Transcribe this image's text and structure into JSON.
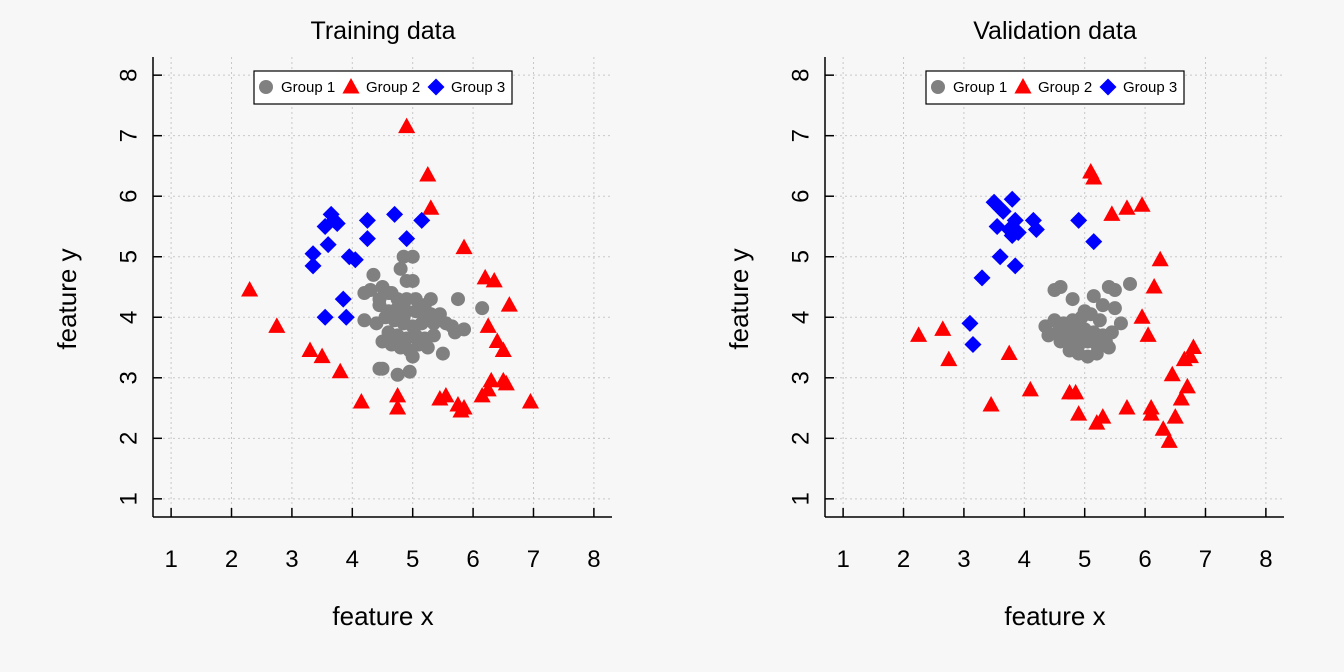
{
  "chart_data": [
    {
      "type": "scatter",
      "title": "Training data",
      "xlabel": "feature x",
      "ylabel": "feature y",
      "xlim": [
        0.7,
        8.3
      ],
      "ylim": [
        0.7,
        8.3
      ],
      "xticks": [
        "1",
        "2",
        "3",
        "4",
        "5",
        "6",
        "7",
        "8"
      ],
      "yticks": [
        "1",
        "2",
        "3",
        "4",
        "5",
        "6",
        "7",
        "8"
      ],
      "grid": true,
      "legend_position": "top-center",
      "series": [
        {
          "name": "Group 1",
          "marker": "circle",
          "color": "#808080",
          "points": [
            [
              4.35,
              4.7
            ],
            [
              4.5,
              4.5
            ],
            [
              4.6,
              4.4
            ],
            [
              4.8,
              4.8
            ],
            [
              4.9,
              4.6
            ],
            [
              5.0,
              4.6
            ],
            [
              4.85,
              5.0
            ],
            [
              5.0,
              5.0
            ],
            [
              4.2,
              4.4
            ],
            [
              4.3,
              4.45
            ],
            [
              4.45,
              4.3
            ],
            [
              4.65,
              4.4
            ],
            [
              4.75,
              4.3
            ],
            [
              4.9,
              4.3
            ],
            [
              5.05,
              4.3
            ],
            [
              5.2,
              4.2
            ],
            [
              5.3,
              4.3
            ],
            [
              4.45,
              4.2
            ],
            [
              4.6,
              4.1
            ],
            [
              4.75,
              4.15
            ],
            [
              4.9,
              4.1
            ],
            [
              5.05,
              4.1
            ],
            [
              5.2,
              4.0
            ],
            [
              5.3,
              4.05
            ],
            [
              4.2,
              3.95
            ],
            [
              4.4,
              3.9
            ],
            [
              4.55,
              4.0
            ],
            [
              4.7,
              3.95
            ],
            [
              4.85,
              3.9
            ],
            [
              5.0,
              3.85
            ],
            [
              5.15,
              3.9
            ],
            [
              5.35,
              3.9
            ],
            [
              5.45,
              4.05
            ],
            [
              5.55,
              3.9
            ],
            [
              5.65,
              3.85
            ],
            [
              5.7,
              3.75
            ],
            [
              5.75,
              4.3
            ],
            [
              4.6,
              3.75
            ],
            [
              4.75,
              3.7
            ],
            [
              4.9,
              3.65
            ],
            [
              5.05,
              3.7
            ],
            [
              5.2,
              3.65
            ],
            [
              5.35,
              3.7
            ],
            [
              4.5,
              3.6
            ],
            [
              4.65,
              3.55
            ],
            [
              4.8,
              3.5
            ],
            [
              4.95,
              3.45
            ],
            [
              5.1,
              3.55
            ],
            [
              5.25,
              3.5
            ],
            [
              5.0,
              3.35
            ],
            [
              5.5,
              3.4
            ],
            [
              4.45,
              3.15
            ],
            [
              4.5,
              3.15
            ],
            [
              4.75,
              3.05
            ],
            [
              4.95,
              3.1
            ],
            [
              6.15,
              4.15
            ],
            [
              5.85,
              3.8
            ],
            [
              4.85,
              4.0
            ]
          ]
        },
        {
          "name": "Group 2",
          "marker": "triangle",
          "color": "#ff0000",
          "points": [
            [
              4.9,
              7.15
            ],
            [
              5.25,
              6.35
            ],
            [
              5.3,
              5.8
            ],
            [
              5.85,
              5.15
            ],
            [
              2.3,
              4.45
            ],
            [
              6.2,
              4.65
            ],
            [
              6.35,
              4.6
            ],
            [
              6.6,
              4.2
            ],
            [
              2.75,
              3.85
            ],
            [
              6.25,
              3.85
            ],
            [
              6.4,
              3.6
            ],
            [
              6.5,
              3.45
            ],
            [
              3.3,
              3.45
            ],
            [
              3.5,
              3.35
            ],
            [
              3.8,
              3.1
            ],
            [
              6.3,
              2.95
            ],
            [
              6.5,
              2.95
            ],
            [
              6.55,
              2.9
            ],
            [
              4.15,
              2.6
            ],
            [
              4.75,
              2.7
            ],
            [
              4.75,
              2.5
            ],
            [
              5.45,
              2.65
            ],
            [
              5.55,
              2.7
            ],
            [
              5.75,
              2.55
            ],
            [
              5.8,
              2.45
            ],
            [
              5.85,
              2.5
            ],
            [
              6.15,
              2.7
            ],
            [
              6.25,
              2.8
            ],
            [
              6.95,
              2.6
            ]
          ]
        },
        {
          "name": "Group 3",
          "marker": "diamond",
          "color": "#0000ff",
          "points": [
            [
              3.65,
              5.7
            ],
            [
              3.7,
              5.6
            ],
            [
              3.75,
              5.55
            ],
            [
              3.55,
              5.5
            ],
            [
              4.25,
              5.6
            ],
            [
              4.7,
              5.7
            ],
            [
              5.15,
              5.6
            ],
            [
              4.25,
              5.3
            ],
            [
              4.9,
              5.3
            ],
            [
              3.6,
              5.2
            ],
            [
              3.35,
              5.05
            ],
            [
              3.95,
              5.0
            ],
            [
              4.05,
              4.95
            ],
            [
              3.35,
              4.85
            ],
            [
              3.85,
              4.3
            ],
            [
              3.55,
              4.0
            ],
            [
              3.9,
              4.0
            ]
          ]
        }
      ]
    },
    {
      "type": "scatter",
      "title": "Validation data",
      "xlabel": "feature x",
      "ylabel": "feature y",
      "xlim": [
        0.7,
        8.3
      ],
      "ylim": [
        0.7,
        8.3
      ],
      "xticks": [
        "1",
        "2",
        "3",
        "4",
        "5",
        "6",
        "7",
        "8"
      ],
      "yticks": [
        "1",
        "2",
        "3",
        "4",
        "5",
        "6",
        "7",
        "8"
      ],
      "grid": true,
      "legend_position": "top-center",
      "series": [
        {
          "name": "Group 1",
          "marker": "circle",
          "color": "#808080",
          "points": [
            [
              4.5,
              4.45
            ],
            [
              4.6,
              4.5
            ],
            [
              4.8,
              4.3
            ],
            [
              5.4,
              4.5
            ],
            [
              5.5,
              4.45
            ],
            [
              5.75,
              4.55
            ],
            [
              5.15,
              4.35
            ],
            [
              5.3,
              4.2
            ],
            [
              5.5,
              4.15
            ],
            [
              4.35,
              3.85
            ],
            [
              4.5,
              3.95
            ],
            [
              4.65,
              3.9
            ],
            [
              4.8,
              3.95
            ],
            [
              4.95,
              4.0
            ],
            [
              5.0,
              4.1
            ],
            [
              5.1,
              4.05
            ],
            [
              5.25,
              3.95
            ],
            [
              5.6,
              3.9
            ],
            [
              4.4,
              3.7
            ],
            [
              4.55,
              3.75
            ],
            [
              4.7,
              3.8
            ],
            [
              4.85,
              3.85
            ],
            [
              5.0,
              3.8
            ],
            [
              5.15,
              3.75
            ],
            [
              5.3,
              3.7
            ],
            [
              5.45,
              3.75
            ],
            [
              4.6,
              3.6
            ],
            [
              4.75,
              3.65
            ],
            [
              4.9,
              3.55
            ],
            [
              5.05,
              3.6
            ],
            [
              5.2,
              3.55
            ],
            [
              5.35,
              3.6
            ],
            [
              4.9,
              3.4
            ],
            [
              5.05,
              3.35
            ],
            [
              5.2,
              3.4
            ],
            [
              5.4,
              3.5
            ],
            [
              4.75,
              3.45
            ],
            [
              5.0,
              3.7
            ],
            [
              4.85,
              3.7
            ]
          ]
        },
        {
          "name": "Group 2",
          "marker": "triangle",
          "color": "#ff0000",
          "points": [
            [
              5.1,
              6.4
            ],
            [
              5.15,
              6.3
            ],
            [
              5.45,
              5.7
            ],
            [
              5.7,
              5.8
            ],
            [
              5.95,
              5.85
            ],
            [
              6.25,
              4.95
            ],
            [
              6.15,
              4.5
            ],
            [
              2.25,
              3.7
            ],
            [
              2.65,
              3.8
            ],
            [
              2.75,
              3.3
            ],
            [
              5.95,
              4.0
            ],
            [
              6.05,
              3.7
            ],
            [
              6.75,
              3.35
            ],
            [
              6.65,
              3.3
            ],
            [
              6.8,
              3.5
            ],
            [
              3.75,
              3.4
            ],
            [
              6.45,
              3.05
            ],
            [
              6.7,
              2.85
            ],
            [
              6.6,
              2.65
            ],
            [
              4.1,
              2.8
            ],
            [
              4.75,
              2.75
            ],
            [
              4.85,
              2.75
            ],
            [
              3.45,
              2.55
            ],
            [
              4.9,
              2.4
            ],
            [
              5.2,
              2.25
            ],
            [
              5.3,
              2.35
            ],
            [
              5.7,
              2.5
            ],
            [
              6.1,
              2.5
            ],
            [
              6.1,
              2.4
            ],
            [
              6.5,
              2.35
            ],
            [
              6.3,
              2.15
            ],
            [
              6.4,
              1.95
            ]
          ]
        },
        {
          "name": "Group 3",
          "marker": "diamond",
          "color": "#0000ff",
          "points": [
            [
              3.5,
              5.9
            ],
            [
              3.8,
              5.95
            ],
            [
              3.6,
              5.8
            ],
            [
              3.65,
              5.75
            ],
            [
              3.85,
              5.6
            ],
            [
              4.15,
              5.6
            ],
            [
              4.9,
              5.6
            ],
            [
              3.55,
              5.5
            ],
            [
              3.75,
              5.45
            ],
            [
              3.9,
              5.4
            ],
            [
              4.2,
              5.45
            ],
            [
              3.8,
              5.35
            ],
            [
              5.15,
              5.25
            ],
            [
              3.6,
              5.0
            ],
            [
              3.85,
              4.85
            ],
            [
              3.3,
              4.65
            ],
            [
              3.1,
              3.9
            ],
            [
              3.15,
              3.55
            ]
          ]
        }
      ]
    }
  ]
}
